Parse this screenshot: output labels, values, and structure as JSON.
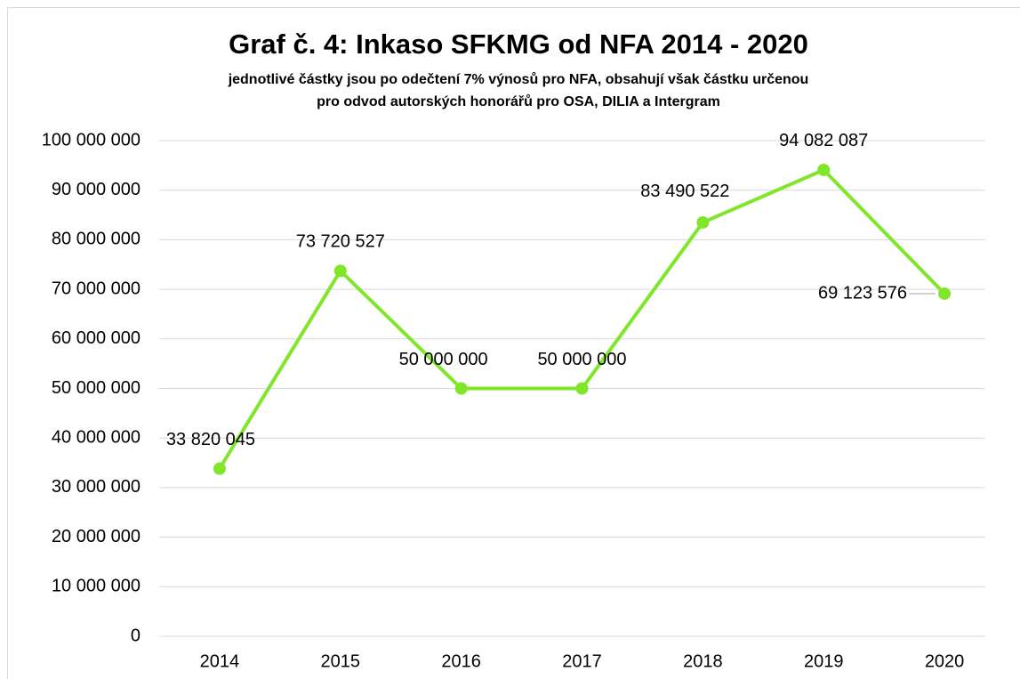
{
  "chart_data": {
    "type": "line",
    "title": "Graf č. 4: Inkaso SFKMG od NFA 2014 - 2020",
    "subtitle": [
      "jednotlivé částky jsou po odečtení 7% výnosů pro NFA, obsahují však částku určenou",
      "pro odvod autorských honorářů pro OSA, DILIA a Intergram"
    ],
    "categories": [
      "2014",
      "2015",
      "2016",
      "2017",
      "2018",
      "2019",
      "2020"
    ],
    "series": [
      {
        "color": "#80e62a",
        "values": [
          33820045,
          73720527,
          50000000,
          50000000,
          83490522,
          94082087,
          69123576
        ],
        "value_labels": [
          "33 820 045",
          "73 720 527",
          "50 000 000",
          "50 000 000",
          "83 490 522",
          "94 082 087",
          "69 123 576"
        ]
      }
    ],
    "ylim": [
      0,
      100000000
    ],
    "yticks": [
      {
        "value": 0,
        "label": "0"
      },
      {
        "value": 10000000,
        "label": "10 000 000"
      },
      {
        "value": 20000000,
        "label": "20 000 000"
      },
      {
        "value": 30000000,
        "label": "30 000 000"
      },
      {
        "value": 40000000,
        "label": "40 000 000"
      },
      {
        "value": 50000000,
        "label": "50 000 000"
      },
      {
        "value": 60000000,
        "label": "60 000 000"
      },
      {
        "value": 70000000,
        "label": "70 000 000"
      },
      {
        "value": 80000000,
        "label": "80 000 000"
      },
      {
        "value": 90000000,
        "label": "90 000 000"
      },
      {
        "value": 100000000,
        "label": "100 000 000"
      }
    ],
    "grid": true
  }
}
